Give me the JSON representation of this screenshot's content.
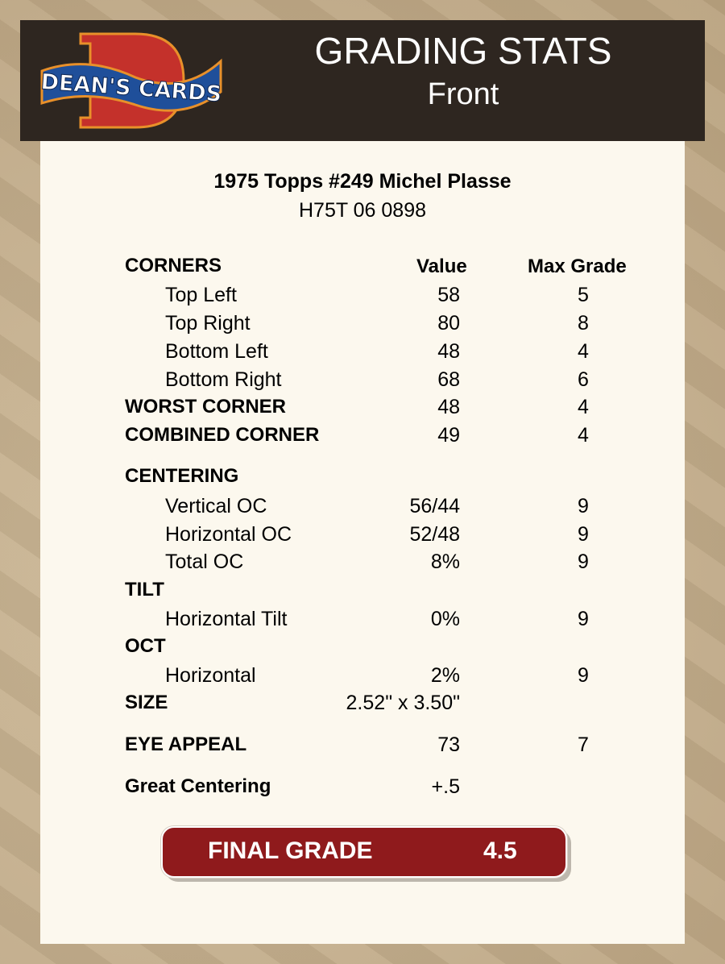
{
  "header": {
    "logo_text": "DEAN'S CARDS",
    "title": "GRADING STATS",
    "subtitle": "Front"
  },
  "card": {
    "title": "1975 Topps #249 Michel Plasse",
    "cert": "H75T 06 0898"
  },
  "columns": {
    "value": "Value",
    "max": "Max Grade"
  },
  "rows": [
    {
      "label": "CORNERS",
      "value": "",
      "max": "",
      "type": "head"
    },
    {
      "label": "Top Left",
      "value": "58",
      "max": "5",
      "type": "sub"
    },
    {
      "label": "Top Right",
      "value": "80",
      "max": "8",
      "type": "sub"
    },
    {
      "label": "Bottom Left",
      "value": "48",
      "max": "4",
      "type": "sub"
    },
    {
      "label": "Bottom Right",
      "value": "68",
      "max": "6",
      "type": "sub"
    },
    {
      "label": "WORST CORNER",
      "value": "48",
      "max": "4",
      "type": "head"
    },
    {
      "label": "COMBINED CORNER",
      "value": "49",
      "max": "4",
      "type": "head"
    },
    {
      "label": "CENTERING",
      "value": "",
      "max": "",
      "type": "head"
    },
    {
      "label": "Vertical OC",
      "value": "56/44",
      "max": "9",
      "type": "sub"
    },
    {
      "label": "Horizontal OC",
      "value": "52/48",
      "max": "9",
      "type": "sub"
    },
    {
      "label": "Total OC",
      "value": "8%",
      "max": "9",
      "type": "sub"
    },
    {
      "label": "TILT",
      "value": "",
      "max": "",
      "type": "head"
    },
    {
      "label": "Horizontal Tilt",
      "value": "0%",
      "max": "9",
      "type": "sub"
    },
    {
      "label": "OCT",
      "value": "",
      "max": "",
      "type": "head"
    },
    {
      "label": "Horizontal",
      "value": "2%",
      "max": "9",
      "type": "sub"
    },
    {
      "label": "SIZE",
      "value": "2.52\" x 3.50\"",
      "max": "",
      "type": "head"
    },
    {
      "label": "EYE APPEAL",
      "value": "73",
      "max": "7",
      "type": "head"
    },
    {
      "label": "Great Centering",
      "value": "+.5",
      "max": "",
      "type": "head"
    }
  ],
  "final": {
    "label": "FINAL GRADE",
    "value": "4.5"
  },
  "colors": {
    "header_bg": "#2e2620",
    "panel_bg": "#fcf8ee",
    "final_bg": "#8f1a1c"
  }
}
